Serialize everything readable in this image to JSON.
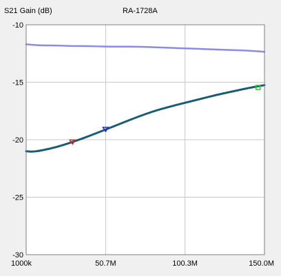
{
  "chart_data": {
    "type": "line",
    "title": "RA-1728A",
    "ylabel": "S21 Gain (dB)",
    "xlabel": "",
    "ylim": [
      -30,
      -10
    ],
    "yticks": [
      -10,
      -15,
      -20,
      -25,
      -30
    ],
    "ytick_labels": [
      "-10",
      "-15",
      "-20",
      "-25",
      "-30"
    ],
    "xlim": [
      1,
      150
    ],
    "xticks": [
      1,
      50.7,
      100.3,
      150
    ],
    "xtick_labels": [
      "1000k",
      "50.7M",
      "100.3M",
      "150.0M"
    ],
    "grid": true,
    "colors": {
      "series_light": "#8a8ae8",
      "series_dark": "#1a5c73",
      "marker_red": "#cc2a2a",
      "marker_blue": "#2a2acc",
      "marker_green": "#2acc2a",
      "grid": "#c8c8c8",
      "axis": "#808080",
      "plot_bg": "#ffffff"
    },
    "series": [
      {
        "x": [
          1,
          10,
          20,
          30,
          40,
          50,
          60,
          70,
          80,
          90,
          100,
          110,
          120,
          130,
          140,
          150
        ],
        "values": [
          -11.7,
          -11.8,
          -11.8,
          -11.85,
          -11.85,
          -11.9,
          -11.9,
          -11.9,
          -11.95,
          -12.0,
          -12.05,
          -12.1,
          -12.15,
          -12.2,
          -12.25,
          -12.35
        ]
      },
      {
        "x": [
          1,
          5,
          10,
          20,
          30,
          40,
          50,
          60,
          70,
          80,
          90,
          100,
          110,
          120,
          130,
          140,
          150
        ],
        "values": [
          -21.0,
          -21.05,
          -20.95,
          -20.65,
          -20.2,
          -19.7,
          -19.15,
          -18.6,
          -18.05,
          -17.55,
          -17.15,
          -16.8,
          -16.45,
          -16.1,
          -15.8,
          -15.5,
          -15.25
        ]
      }
    ],
    "markers": [
      {
        "x": 30,
        "y": -20.2,
        "shape": "triangle-down",
        "color": "#cc2a2a"
      },
      {
        "x": 50.7,
        "y": -19.1,
        "shape": "triangle-down",
        "color": "#2a2acc"
      },
      {
        "x": 146,
        "y": -15.45,
        "shape": "square",
        "color": "#2acc2a"
      }
    ]
  }
}
